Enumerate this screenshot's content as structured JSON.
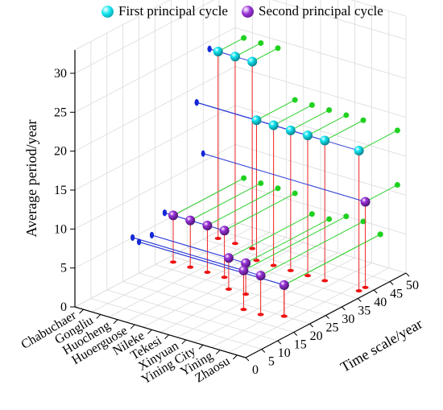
{
  "chart_data": {
    "type": "scatter",
    "title": "",
    "xlabel": "",
    "ylabel": "Time scale/year",
    "zlabel": "Average period/year",
    "stations": [
      "Chabuchaer",
      "Gongliu",
      "Huocheng",
      "Huoerguose",
      "Nileke",
      "Tekesi",
      "Xinyuan",
      "Yining City",
      "Yining",
      "Zhaosu"
    ],
    "y_ticks": [
      "0",
      "5",
      "10",
      "15",
      "20",
      "25",
      "30",
      "35",
      "40",
      "45",
      "50"
    ],
    "z_ticks": [
      "0",
      "5",
      "10",
      "15",
      "20",
      "25",
      "30"
    ],
    "ylim": [
      0,
      50
    ],
    "zlim": [
      0,
      33
    ],
    "grid": true,
    "legend_position": "top",
    "series": [
      {
        "name": "First principal cycle",
        "color": "#12e6f0",
        "points": [
          {
            "station": "Chabuchaer",
            "time_scale": 42,
            "period": 24
          },
          {
            "station": "Gongliu",
            "time_scale": 42,
            "period": 24
          },
          {
            "station": "Huocheng",
            "time_scale": 42,
            "period": 24
          },
          {
            "station": "Huoerguose",
            "time_scale": 38,
            "period": 18
          },
          {
            "station": "Nileke",
            "time_scale": 38,
            "period": 18
          },
          {
            "station": "Tekesi",
            "time_scale": 38,
            "period": 18
          },
          {
            "station": "Xinyuan",
            "time_scale": 38,
            "period": 18
          },
          {
            "station": "Yining City",
            "time_scale": 38,
            "period": 18
          },
          {
            "station": "Yining",
            "time_scale": 20,
            "period": 4
          },
          {
            "station": "Zhaosu",
            "time_scale": 38,
            "period": 18
          }
        ]
      },
      {
        "name": "Second principal cycle",
        "color": "#9a33d8",
        "points": [
          {
            "station": "Chabuchaer",
            "time_scale": 28,
            "period": 6
          },
          {
            "station": "Gongliu",
            "time_scale": 28,
            "period": 6
          },
          {
            "station": "Huocheng",
            "time_scale": 28,
            "period": 6
          },
          {
            "station": "Huoerguose",
            "time_scale": 28,
            "period": 6
          },
          {
            "station": "Nileke",
            "time_scale": 24,
            "period": 4
          },
          {
            "station": "Tekesi",
            "time_scale": 24,
            "period": 4
          },
          {
            "station": "Xinyuan",
            "time_scale": 18,
            "period": 5
          },
          {
            "station": "Yining City",
            "time_scale": 18,
            "period": 5
          },
          {
            "station": "Yining",
            "time_scale": 20,
            "period": 4
          },
          {
            "station": "Zhaosu",
            "time_scale": 40,
            "period": 11
          }
        ]
      }
    ]
  }
}
